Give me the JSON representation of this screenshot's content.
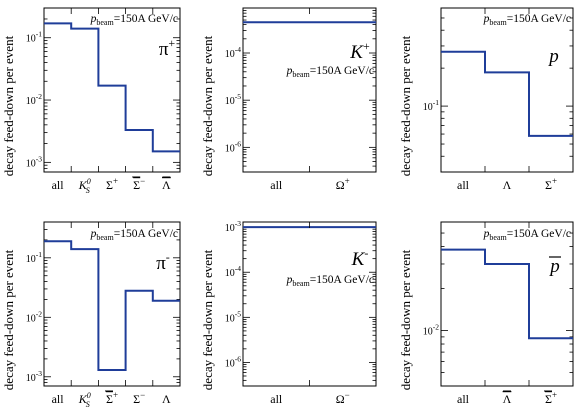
{
  "ylabel": "decay feed-down per event",
  "beam_prefix": "p",
  "beam_sub": "beam",
  "beam_suffix": "=150A GeV/c",
  "line_color": "#1f3d99",
  "chart_data": [
    {
      "type": "bar-step",
      "particle": "π",
      "particle_sup": "+",
      "categories": [
        "all",
        "K0S",
        "Σ+",
        "Σ‾−",
        "Λ‾"
      ],
      "values": [
        0.17,
        0.14,
        0.017,
        0.0033,
        0.0015
      ],
      "yscale": "log",
      "ylim": [
        0.0007,
        0.3
      ],
      "yticks": [
        {
          "v": 0.1,
          "l": "10^-1"
        },
        {
          "v": 0.01,
          "l": "10^-2"
        },
        {
          "v": 0.001,
          "l": "10^-3"
        }
      ]
    },
    {
      "type": "bar-step",
      "particle": "K",
      "particle_sup": "+",
      "categories": [
        "all",
        "Ω+"
      ],
      "values": [
        0.00045,
        0.00045
      ],
      "yscale": "log",
      "ylim": [
        3e-07,
        0.0009
      ],
      "yticks": [
        {
          "v": 0.0001,
          "l": "10^-4"
        },
        {
          "v": 1e-05,
          "l": "10^-5"
        },
        {
          "v": 1e-06,
          "l": "10^-6"
        }
      ]
    },
    {
      "type": "bar-step",
      "particle": "p",
      "particle_sup": "",
      "categories": [
        "all",
        "Λ",
        "Σ+"
      ],
      "values": [
        0.27,
        0.185,
        0.058
      ],
      "yscale": "log",
      "ylim": [
        0.03,
        0.6
      ],
      "yticks": [
        {
          "v": 0.1,
          "l": "10^-1"
        }
      ]
    },
    {
      "type": "bar-step",
      "particle": "π",
      "particle_sup": "-",
      "categories": [
        "all",
        "K0S",
        "Σ‾+",
        "Σ−",
        "Λ"
      ],
      "values": [
        0.19,
        0.14,
        0.0013,
        0.028,
        0.019
      ],
      "yscale": "log",
      "ylim": [
        0.0007,
        0.4
      ],
      "yticks": [
        {
          "v": 0.1,
          "l": "10^-1"
        },
        {
          "v": 0.01,
          "l": "10^-2"
        },
        {
          "v": 0.001,
          "l": "10^-3"
        }
      ]
    },
    {
      "type": "bar-step",
      "particle": "K",
      "particle_sup": "-",
      "categories": [
        "all",
        "Ω−"
      ],
      "values": [
        0.001,
        0.001
      ],
      "yscale": "log",
      "ylim": [
        3e-07,
        0.0013
      ],
      "yticks": [
        {
          "v": 0.001,
          "l": "10^-3"
        },
        {
          "v": 0.0001,
          "l": "10^-4"
        },
        {
          "v": 1e-05,
          "l": "10^-5"
        },
        {
          "v": 1e-06,
          "l": "10^-6"
        }
      ]
    },
    {
      "type": "bar-step",
      "particle": "p‾",
      "particle_sup": "",
      "categories": [
        "all",
        "Λ‾",
        "Σ‾+"
      ],
      "values": [
        0.038,
        0.03,
        0.0088
      ],
      "yscale": "log",
      "ylim": [
        0.004,
        0.06
      ],
      "yticks": [
        {
          "v": 0.01,
          "l": "10^-2"
        }
      ]
    }
  ]
}
